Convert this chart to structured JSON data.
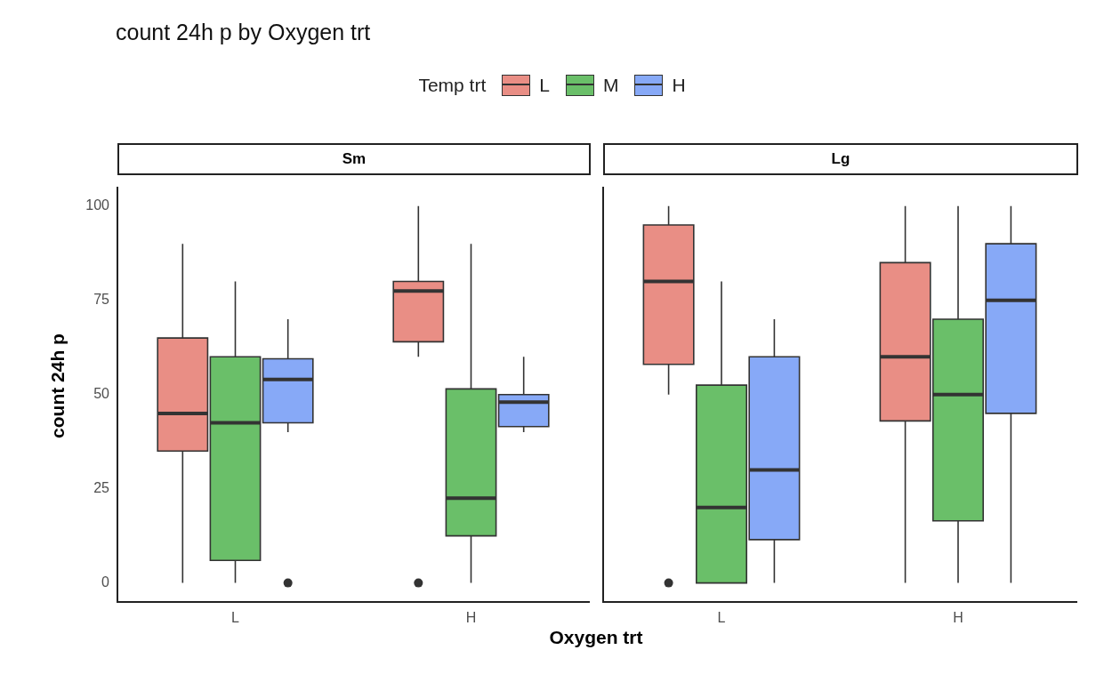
{
  "chart_data": [
    {
      "type": "box",
      "title": "count 24h p by Oxygen trt",
      "subtitle": "Sm",
      "legend_title": "Temp trt",
      "legend": "top",
      "xlabel": "Oxygen trt",
      "ylabel": "count 24h p",
      "categories": [
        "L",
        "H"
      ],
      "ylim": [
        -5,
        105
      ],
      "yticks": [
        0,
        25,
        50,
        75,
        100
      ],
      "series": [
        {
          "name": "L",
          "color": "#e98e85",
          "boxes": [
            {
              "low": 0,
              "q1": 35,
              "median": 45,
              "q3": 65,
              "high": 90
            },
            {
              "low": 60,
              "q1": 64,
              "median": 77.5,
              "q3": 80,
              "high": 100,
              "outliers": [
                0
              ]
            }
          ]
        },
        {
          "name": "M",
          "color": "#6abf69",
          "boxes": [
            {
              "low": 0,
              "q1": 6,
              "median": 42.5,
              "q3": 60,
              "high": 80
            },
            {
              "low": 0,
              "q1": 12.5,
              "median": 22.5,
              "q3": 51.5,
              "high": 90
            }
          ]
        },
        {
          "name": "H",
          "color": "#87a9f7",
          "boxes": [
            {
              "low": 40,
              "q1": 42.5,
              "median": 54,
              "q3": 59.5,
              "high": 70,
              "outliers": [
                0
              ]
            },
            {
              "low": 40,
              "q1": 41.5,
              "median": 48,
              "q3": 50,
              "high": 60
            }
          ]
        }
      ]
    },
    {
      "type": "box",
      "subtitle": "Lg",
      "categories": [
        "L",
        "H"
      ],
      "ylim": [
        -5,
        105
      ],
      "yticks": [
        0,
        25,
        50,
        75,
        100
      ],
      "tick_labels": "x",
      "series": [
        {
          "color": "#e98e85",
          "boxes": [
            {
              "low": 50,
              "q1": 58,
              "median": 80,
              "q3": 95,
              "high": 100,
              "outliers": [
                0
              ]
            },
            {
              "low": 0,
              "q1": 43,
              "median": 60,
              "q3": 85,
              "high": 100
            }
          ]
        },
        {
          "color": "#6abf69",
          "boxes": [
            {
              "low": 0,
              "q1": 0,
              "median": 20,
              "q3": 52.5,
              "high": 80
            },
            {
              "low": 0,
              "q1": 16.5,
              "median": 50,
              "q3": 70,
              "high": 100
            }
          ]
        },
        {
          "color": "#87a9f7",
          "boxes": [
            {
              "low": 0,
              "q1": 11.5,
              "median": 30,
              "q3": 60,
              "high": 70
            },
            {
              "low": 0,
              "q1": 45,
              "median": 75,
              "q3": 90,
              "high": 100
            }
          ]
        }
      ]
    }
  ]
}
